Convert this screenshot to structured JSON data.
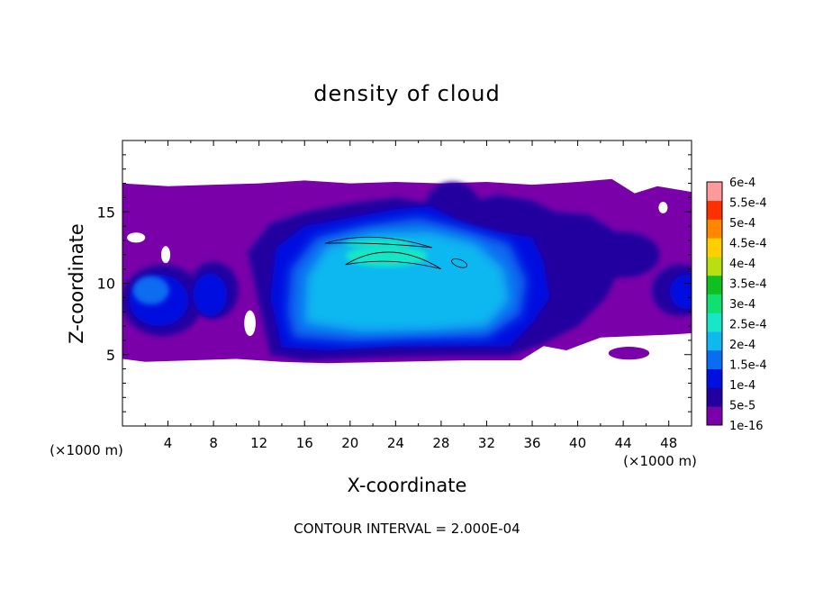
{
  "chart_data": {
    "type": "heatmap",
    "title": "density of cloud",
    "xlabel": "X-coordinate",
    "ylabel": "Z-coordinate",
    "x_unit": "(×1000 m)",
    "z_unit": "(×1000 m)",
    "xlim": [
      0,
      50
    ],
    "ylim": [
      0,
      20
    ],
    "x_ticks": [
      "4",
      "8",
      "12",
      "16",
      "20",
      "24",
      "28",
      "32",
      "36",
      "40",
      "44",
      "48"
    ],
    "y_ticks": [
      "5",
      "10",
      "15"
    ],
    "x_tick_values": [
      4,
      8,
      12,
      16,
      20,
      24,
      28,
      32,
      36,
      40,
      44,
      48
    ],
    "y_tick_values": [
      5,
      10,
      15
    ],
    "footer": "CONTOUR INTERVAL = 2.000E-04",
    "contour_interval": 0.0002,
    "colorbar": {
      "labels": [
        "1e-16",
        "5e-5",
        "1e-4",
        "1.5e-4",
        "2e-4",
        "2.5e-4",
        "3e-4",
        "3.5e-4",
        "4e-4",
        "4.5e-4",
        "5e-4",
        "5.5e-4",
        "6e-4"
      ],
      "values": [
        1e-16,
        5e-05,
        0.0001,
        0.00015,
        0.0002,
        0.00025,
        0.0003,
        0.00035,
        0.0004,
        0.00045,
        0.0005,
        0.00055,
        0.0006
      ],
      "colors": [
        "#7a00aa",
        "#2200a0",
        "#0010e0",
        "#0a6cf0",
        "#10b8f0",
        "#18e6c8",
        "#10e070",
        "#10c020",
        "#b8e010",
        "#ffd000",
        "#ff8800",
        "#ff3000",
        "#ff9a9a"
      ]
    },
    "features": {
      "cloud_base_z": 4.6,
      "cloud_top_z": 17.2,
      "core_x_range": [
        14,
        36
      ],
      "core_z_range": [
        5.5,
        14.5
      ],
      "max_region_x": [
        18,
        30
      ],
      "max_region_z": [
        11,
        13.5
      ],
      "max_density": 0.00022
    }
  }
}
